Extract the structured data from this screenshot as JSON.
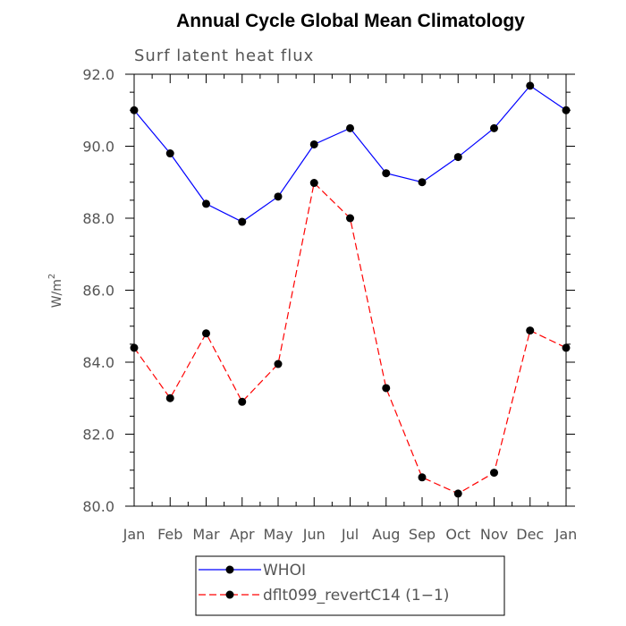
{
  "chart_data": {
    "type": "line",
    "title": "Annual Cycle Global Mean Climatology",
    "subtitle": "Surf latent heat flux",
    "xlabel": "",
    "ylabel": "W/m",
    "ylabel_superscript": "2",
    "categories": [
      "Jan",
      "Feb",
      "Mar",
      "Apr",
      "May",
      "Jun",
      "Jul",
      "Aug",
      "Sep",
      "Oct",
      "Nov",
      "Dec",
      "Jan"
    ],
    "ylim": [
      80.0,
      92.0
    ],
    "yticks": [
      "80.0",
      "82.0",
      "84.0",
      "86.0",
      "88.0",
      "90.0",
      "92.0"
    ],
    "legend_position": "bottom-center",
    "series": [
      {
        "name": "WHOI",
        "color": "#0000ff",
        "dash": "solid",
        "values": [
          91.0,
          89.8,
          88.4,
          87.9,
          88.6,
          90.05,
          90.5,
          89.25,
          89.0,
          89.7,
          90.5,
          91.68,
          91.0
        ]
      },
      {
        "name": "dflt099_revertC14 (1−1)",
        "color": "#ff0000",
        "dash": "dashed",
        "values": [
          84.4,
          83.0,
          84.8,
          82.9,
          83.95,
          88.98,
          88.0,
          83.28,
          80.8,
          80.35,
          80.93,
          84.88,
          84.4
        ]
      }
    ]
  }
}
